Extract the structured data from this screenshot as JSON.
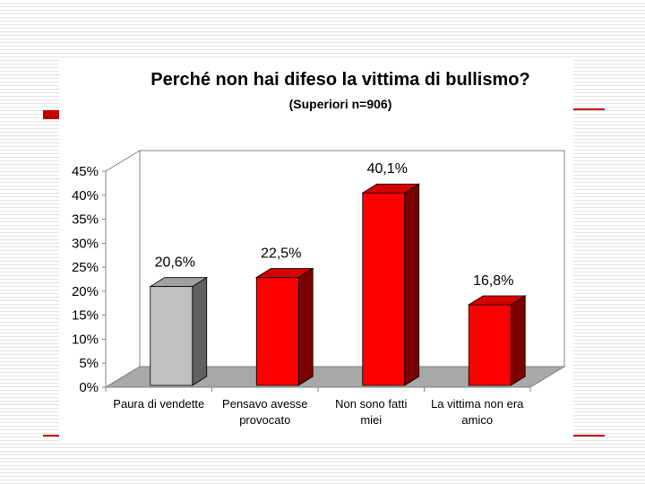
{
  "colors": {
    "accent": "#c00000",
    "bar_red": "#ff0000",
    "bar_red_side": "#7a0000",
    "bar_red_top": "#d40000",
    "bar_gray": "#c0c0c0",
    "bar_gray_side": "#606060",
    "bar_gray_top": "#a0a0a0",
    "floor": "#a8a8a8"
  },
  "chart_data": {
    "type": "bar",
    "title": "Perché non hai difeso la vittima di bullismo?",
    "subtitle": "(Superiori n=906)",
    "categories": [
      [
        "Paura di vendette"
      ],
      [
        "Pensavo avesse",
        "provocato"
      ],
      [
        "Non sono fatti",
        "miei"
      ],
      [
        "La vittima non era",
        "amico"
      ]
    ],
    "values": [
      20.6,
      22.5,
      40.1,
      16.8
    ],
    "data_labels": [
      "20,6%",
      "22,5%",
      "40,1%",
      "16,8%"
    ],
    "bar_colors": [
      "gray",
      "red",
      "red",
      "red"
    ],
    "ylim": [
      0,
      45
    ],
    "yticks": [
      0,
      5,
      10,
      15,
      20,
      25,
      30,
      35,
      40,
      45
    ],
    "ytick_labels": [
      "0%",
      "5%",
      "10%",
      "15%",
      "20%",
      "25%",
      "30%",
      "35%",
      "40%",
      "45%"
    ],
    "grid": false,
    "style": "3d"
  }
}
